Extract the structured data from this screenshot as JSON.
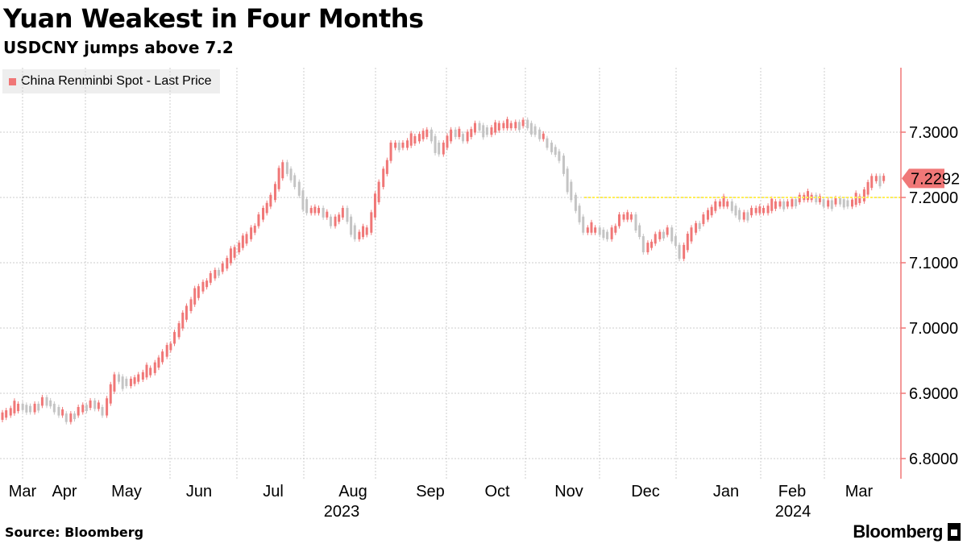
{
  "title": "Yuan Weakest in Four Months",
  "subtitle": "USDCNY jumps above 7.2",
  "source": "Source: Bloomberg",
  "brand": "Bloomberg",
  "colors": {
    "up": "#f07777",
    "down": "#c4c4c4",
    "level_line": "#ffee55",
    "axis": "#f07777",
    "grid": "#cccccc"
  },
  "chart_data": {
    "type": "bar",
    "title": "Yuan Weakest in Four Months",
    "subtitle": "USDCNY jumps above 7.2",
    "legend": [
      "China Renminbi Spot - Last Price"
    ],
    "legend_position": "top-left",
    "ylim": [
      6.78,
      7.36
    ],
    "yticks": [
      "7.3000",
      "7.2000",
      "7.1000",
      "7.0000",
      "6.9000",
      "6.8000"
    ],
    "x_month_labels": [
      "Mar",
      "Apr",
      "May",
      "Jun",
      "Jul",
      "Aug",
      "Sep",
      "Oct",
      "Nov",
      "Dec",
      "Jan",
      "Feb",
      "Mar"
    ],
    "x_year_labels": [
      "2023",
      "2024"
    ],
    "last_value_label": "7.2292",
    "last_value": 7.2292,
    "reference_level": 7.2,
    "grid": true,
    "x_start": "2023-03-01",
    "series": [
      {
        "name": "China Renminbi Spot - Last Price",
        "weekly_closes": [
          6.87,
          6.88,
          6.875,
          6.89,
          6.875,
          6.86,
          6.875,
          6.885,
          6.87,
          6.925,
          6.915,
          6.925,
          6.935,
          6.96,
          6.99,
          7.03,
          7.06,
          7.08,
          7.095,
          7.12,
          7.14,
          7.17,
          7.2,
          7.25,
          7.22,
          7.18,
          7.18,
          7.16,
          7.18,
          7.14,
          7.15,
          7.22,
          7.28,
          7.28,
          7.29,
          7.3,
          7.27,
          7.3,
          7.29,
          7.31,
          7.3,
          7.31,
          7.31,
          7.315,
          7.3,
          7.28,
          7.26,
          7.2,
          7.15,
          7.15,
          7.14,
          7.17,
          7.17,
          7.12,
          7.14,
          7.15,
          7.11,
          7.15,
          7.17,
          7.19,
          7.19,
          7.17,
          7.18,
          7.18,
          7.19,
          7.19,
          7.2,
          7.2,
          7.19,
          7.195,
          7.19,
          7.198,
          7.2289,
          7.2292
        ]
      }
    ]
  }
}
